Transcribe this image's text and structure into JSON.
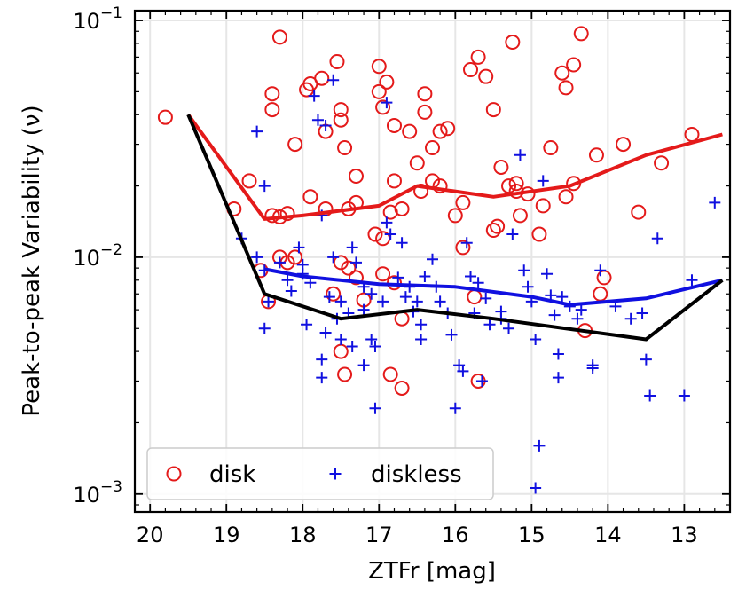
{
  "chart_data": {
    "type": "scatter",
    "title": "",
    "xlabel": "ZTFr [mag]",
    "ylabel": "Peak-to-peak Variability (ν)",
    "xlim": [
      20.2,
      12.4
    ],
    "ylim": [
      0.00084,
      0.11
    ],
    "yscale": "log",
    "grid": true,
    "legend_position": "bottom-left",
    "x_ticks": [
      20,
      19,
      18,
      17,
      16,
      15,
      14,
      13
    ],
    "x_tick_labels": [
      "20",
      "19",
      "18",
      "17",
      "16",
      "15",
      "14",
      "13"
    ],
    "y_tick_labels": [
      {
        "value": 0.1,
        "base": "10",
        "exp": "−1"
      },
      {
        "value": 0.01,
        "base": "10",
        "exp": "−2"
      },
      {
        "value": 0.001,
        "base": "10",
        "exp": "−3"
      }
    ],
    "colors": {
      "disk": "#e41a1a",
      "diskless": "#1010e0",
      "black_curve": "#000000",
      "grid": "#e6e6e6"
    },
    "series": [
      {
        "name": "disk",
        "marker": "circle",
        "points": [
          [
            19.8,
            0.039
          ],
          [
            18.3,
            0.085
          ],
          [
            18.4,
            0.049
          ],
          [
            18.4,
            0.042
          ],
          [
            18.7,
            0.021
          ],
          [
            18.9,
            0.016
          ],
          [
            18.4,
            0.015
          ],
          [
            18.3,
            0.0148
          ],
          [
            18.2,
            0.0153
          ],
          [
            18.1,
            0.03
          ],
          [
            18.3,
            0.01
          ],
          [
            18.2,
            0.0095
          ],
          [
            18.1,
            0.01
          ],
          [
            18.55,
            0.0088
          ],
          [
            18.45,
            0.0065
          ],
          [
            17.9,
            0.018
          ],
          [
            17.9,
            0.054
          ],
          [
            17.95,
            0.051
          ],
          [
            17.75,
            0.057
          ],
          [
            17.7,
            0.034
          ],
          [
            17.55,
            0.067
          ],
          [
            17.5,
            0.042
          ],
          [
            17.5,
            0.038
          ],
          [
            17.45,
            0.029
          ],
          [
            17.4,
            0.016
          ],
          [
            17.7,
            0.016
          ],
          [
            17.5,
            0.0095
          ],
          [
            17.4,
            0.009
          ],
          [
            17.3,
            0.022
          ],
          [
            17.3,
            0.017
          ],
          [
            17.6,
            0.007
          ],
          [
            17.3,
            0.0082
          ],
          [
            17.2,
            0.0066
          ],
          [
            17.5,
            0.004
          ],
          [
            17.45,
            0.0032
          ],
          [
            17.0,
            0.064
          ],
          [
            17.0,
            0.05
          ],
          [
            16.95,
            0.043
          ],
          [
            16.9,
            0.055
          ],
          [
            16.8,
            0.036
          ],
          [
            16.8,
            0.021
          ],
          [
            16.85,
            0.0155
          ],
          [
            16.95,
            0.012
          ],
          [
            17.05,
            0.0125
          ],
          [
            16.95,
            0.0085
          ],
          [
            16.8,
            0.0078
          ],
          [
            16.7,
            0.016
          ],
          [
            16.7,
            0.0055
          ],
          [
            16.7,
            0.0028
          ],
          [
            16.85,
            0.0032
          ],
          [
            16.6,
            0.034
          ],
          [
            16.5,
            0.025
          ],
          [
            16.45,
            0.019
          ],
          [
            16.4,
            0.049
          ],
          [
            16.4,
            0.041
          ],
          [
            16.3,
            0.029
          ],
          [
            16.3,
            0.021
          ],
          [
            16.2,
            0.02
          ],
          [
            16.2,
            0.034
          ],
          [
            16.1,
            0.035
          ],
          [
            16.0,
            0.015
          ],
          [
            15.9,
            0.017
          ],
          [
            15.9,
            0.011
          ],
          [
            15.8,
            0.062
          ],
          [
            15.75,
            0.0068
          ],
          [
            15.7,
            0.07
          ],
          [
            15.6,
            0.058
          ],
          [
            15.5,
            0.042
          ],
          [
            15.4,
            0.024
          ],
          [
            15.5,
            0.013
          ],
          [
            15.45,
            0.0135
          ],
          [
            15.25,
            0.081
          ],
          [
            15.3,
            0.02
          ],
          [
            15.2,
            0.0205
          ],
          [
            15.2,
            0.019
          ],
          [
            15.15,
            0.015
          ],
          [
            15.05,
            0.0185
          ],
          [
            14.85,
            0.0165
          ],
          [
            14.75,
            0.029
          ],
          [
            14.9,
            0.0125
          ],
          [
            14.6,
            0.06
          ],
          [
            14.55,
            0.052
          ],
          [
            14.55,
            0.018
          ],
          [
            14.45,
            0.0205
          ],
          [
            14.45,
            0.065
          ],
          [
            14.35,
            0.088
          ],
          [
            14.15,
            0.027
          ],
          [
            14.05,
            0.0082
          ],
          [
            14.1,
            0.007
          ],
          [
            14.3,
            0.0049
          ],
          [
            13.8,
            0.03
          ],
          [
            13.6,
            0.0155
          ],
          [
            13.3,
            0.025
          ],
          [
            12.9,
            0.033
          ],
          [
            15.7,
            0.003
          ]
        ]
      },
      {
        "name": "diskless",
        "marker": "plus",
        "points": [
          [
            18.6,
            0.034
          ],
          [
            18.5,
            0.02
          ],
          [
            18.8,
            0.012
          ],
          [
            18.6,
            0.01
          ],
          [
            18.5,
            0.0088
          ],
          [
            18.45,
            0.0065
          ],
          [
            18.5,
            0.005
          ],
          [
            18.3,
            0.0095
          ],
          [
            18.2,
            0.008
          ],
          [
            18.15,
            0.0072
          ],
          [
            18.05,
            0.011
          ],
          [
            18.0,
            0.0093
          ],
          [
            17.95,
            0.0052
          ],
          [
            17.85,
            0.048
          ],
          [
            17.8,
            0.038
          ],
          [
            17.7,
            0.036
          ],
          [
            17.75,
            0.015
          ],
          [
            17.6,
            0.01
          ],
          [
            17.5,
            0.0065
          ],
          [
            17.7,
            0.0048
          ],
          [
            17.75,
            0.0037
          ],
          [
            17.75,
            0.0031
          ],
          [
            17.55,
            0.0055
          ],
          [
            17.5,
            0.0045
          ],
          [
            17.6,
            0.056
          ],
          [
            17.35,
            0.011
          ],
          [
            17.3,
            0.0095
          ],
          [
            17.2,
            0.0075
          ],
          [
            17.1,
            0.007
          ],
          [
            17.2,
            0.006
          ],
          [
            17.1,
            0.0045
          ],
          [
            17.35,
            0.0042
          ],
          [
            17.2,
            0.0035
          ],
          [
            17.05,
            0.0042
          ],
          [
            17.05,
            0.0023
          ],
          [
            16.9,
            0.045
          ],
          [
            16.9,
            0.014
          ],
          [
            16.85,
            0.0125
          ],
          [
            16.7,
            0.0115
          ],
          [
            16.75,
            0.0082
          ],
          [
            16.65,
            0.0068
          ],
          [
            16.6,
            0.0075
          ],
          [
            16.55,
            0.0059
          ],
          [
            16.5,
            0.0065
          ],
          [
            16.45,
            0.0052
          ],
          [
            16.45,
            0.0045
          ],
          [
            16.4,
            0.0083
          ],
          [
            16.3,
            0.0098
          ],
          [
            16.25,
            0.0075
          ],
          [
            16.2,
            0.0065
          ],
          [
            16.1,
            0.0058
          ],
          [
            16.05,
            0.0047
          ],
          [
            16.0,
            0.0023
          ],
          [
            15.95,
            0.0035
          ],
          [
            15.9,
            0.0033
          ],
          [
            15.85,
            0.0115
          ],
          [
            15.8,
            0.0083
          ],
          [
            15.7,
            0.0078
          ],
          [
            15.6,
            0.0067
          ],
          [
            15.65,
            0.003
          ],
          [
            15.4,
            0.0059
          ],
          [
            15.4,
            0.0055
          ],
          [
            15.3,
            0.005
          ],
          [
            15.25,
            0.0125
          ],
          [
            15.15,
            0.027
          ],
          [
            15.1,
            0.0088
          ],
          [
            15.05,
            0.0075
          ],
          [
            15.0,
            0.0065
          ],
          [
            14.95,
            0.0045
          ],
          [
            14.9,
            0.0016
          ],
          [
            14.95,
            0.00106
          ],
          [
            14.85,
            0.021
          ],
          [
            14.8,
            0.0085
          ],
          [
            14.75,
            0.0069
          ],
          [
            14.7,
            0.0057
          ],
          [
            14.65,
            0.0039
          ],
          [
            14.65,
            0.0031
          ],
          [
            14.6,
            0.0068
          ],
          [
            14.5,
            0.0062
          ],
          [
            14.4,
            0.0055
          ],
          [
            14.35,
            0.006
          ],
          [
            14.2,
            0.0035
          ],
          [
            14.2,
            0.0034
          ],
          [
            14.1,
            0.0088
          ],
          [
            13.9,
            0.0062
          ],
          [
            13.7,
            0.0055
          ],
          [
            13.55,
            0.0058
          ],
          [
            13.5,
            0.0037
          ],
          [
            13.45,
            0.0026
          ],
          [
            13.35,
            0.012
          ],
          [
            13.0,
            0.0026
          ],
          [
            12.9,
            0.008
          ],
          [
            12.6,
            0.017
          ],
          [
            18.0,
            0.0085
          ],
          [
            17.9,
            0.0078
          ],
          [
            17.65,
            0.0068
          ],
          [
            17.4,
            0.0058
          ],
          [
            16.95,
            0.0065
          ],
          [
            15.75,
            0.0058
          ],
          [
            15.55,
            0.0052
          ]
        ]
      },
      {
        "name": "disk median",
        "marker": "line",
        "points": [
          [
            19.5,
            0.04
          ],
          [
            18.5,
            0.0145
          ],
          [
            18.0,
            0.015
          ],
          [
            17.0,
            0.0165
          ],
          [
            16.5,
            0.02
          ],
          [
            15.5,
            0.018
          ],
          [
            14.5,
            0.02
          ],
          [
            13.5,
            0.027
          ],
          [
            12.5,
            0.033
          ]
        ]
      },
      {
        "name": "diskless median",
        "marker": "line",
        "points": [
          [
            18.5,
            0.0089
          ],
          [
            18.0,
            0.0083
          ],
          [
            17.0,
            0.0077
          ],
          [
            16.0,
            0.0075
          ],
          [
            15.0,
            0.0068
          ],
          [
            14.5,
            0.0063
          ],
          [
            13.5,
            0.0067
          ],
          [
            12.5,
            0.008
          ]
        ]
      },
      {
        "name": "lower envelope",
        "marker": "line",
        "points": [
          [
            19.5,
            0.04
          ],
          [
            18.5,
            0.007
          ],
          [
            17.5,
            0.0055
          ],
          [
            16.5,
            0.006
          ],
          [
            15.5,
            0.0055
          ],
          [
            13.5,
            0.0045
          ],
          [
            12.5,
            0.008
          ]
        ]
      }
    ],
    "legend": [
      {
        "label": "disk",
        "marker": "circle"
      },
      {
        "label": "diskless",
        "marker": "plus"
      }
    ]
  }
}
